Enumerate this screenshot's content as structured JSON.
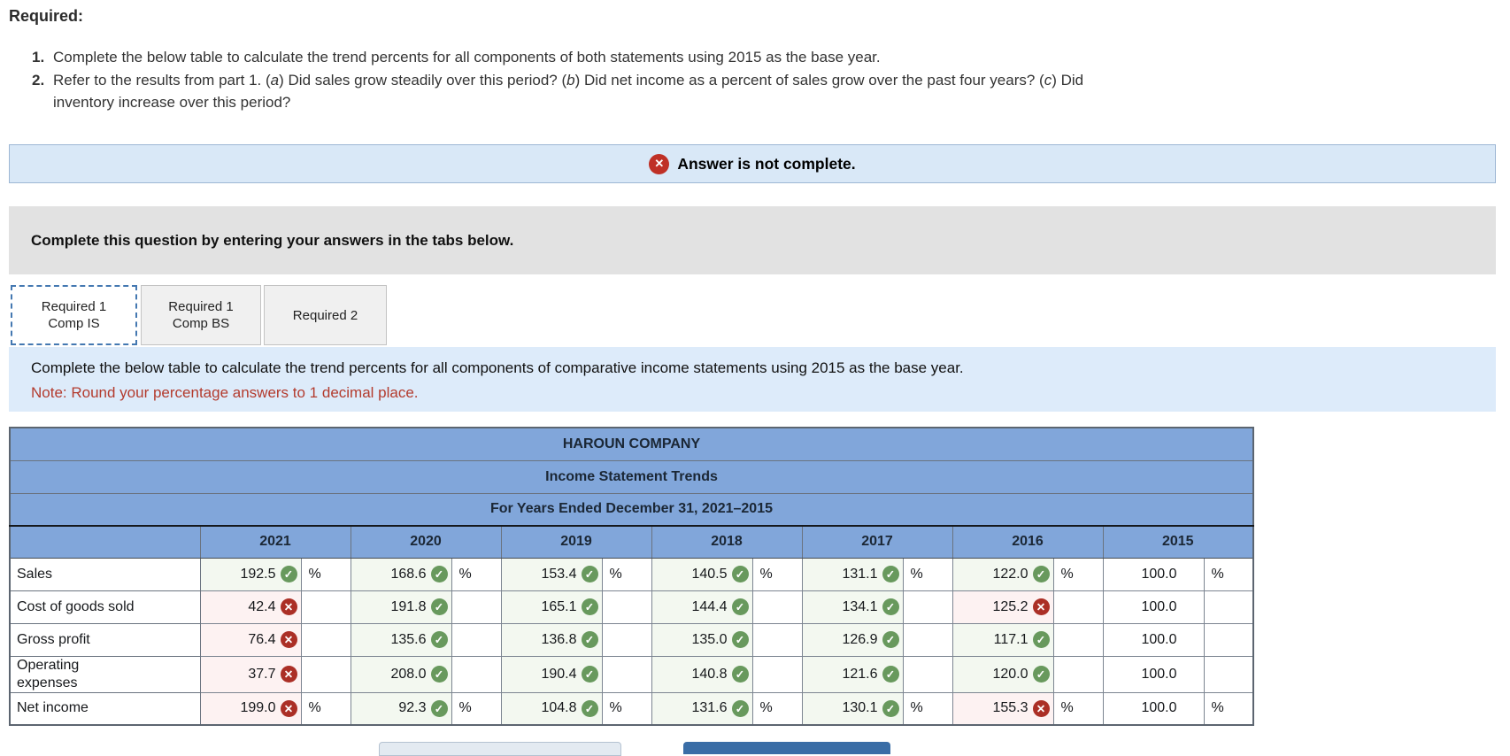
{
  "instructions": {
    "required_label": "Required:",
    "item1_num": "1.",
    "item1_text": "Complete the below table to calculate the trend percents for all components of both statements using 2015 as the base year.",
    "item2_num": "2.",
    "item2_segments": [
      {
        "text": "Refer to the results from part 1. ("
      },
      {
        "text": "a",
        "italic": true
      },
      {
        "text": ") Did sales grow steadily over this period? ("
      },
      {
        "text": "b",
        "italic": true
      },
      {
        "text": ") Did net income as a percent of sales grow over the past four years? ("
      },
      {
        "text": "c",
        "italic": true
      },
      {
        "text": ") Did inventory increase over this period?"
      }
    ]
  },
  "status_banner": {
    "icon": "x-circle-icon",
    "text": "Answer is not complete."
  },
  "prompt_bar": {
    "text": "Complete this question by entering your answers in the tabs below."
  },
  "tabs": [
    {
      "lines": [
        "Required 1",
        "Comp IS"
      ],
      "active": true
    },
    {
      "lines": [
        "Required 1",
        "Comp BS"
      ],
      "active": false
    },
    {
      "lines": [
        "Required 2"
      ],
      "active": false
    }
  ],
  "tab_panel": {
    "instruction": "Complete the below table to calculate the trend percents for all components of comparative income statements using 2015 as the base year.",
    "note": "Note: Round your percentage answers to 1 decimal place."
  },
  "table": {
    "titles": [
      "HAROUN COMPANY",
      "Income Statement Trends",
      "For Years Ended December 31, 2021–2015"
    ],
    "years": [
      "2021",
      "2020",
      "2019",
      "2018",
      "2017",
      "2016",
      "2015"
    ],
    "unit": "%",
    "rows": [
      {
        "label": "Sales",
        "show_unit": true,
        "cells": [
          {
            "value": "192.5",
            "status": "correct"
          },
          {
            "value": "168.6",
            "status": "correct"
          },
          {
            "value": "153.4",
            "status": "correct"
          },
          {
            "value": "140.5",
            "status": "correct"
          },
          {
            "value": "131.1",
            "status": "correct"
          },
          {
            "value": "122.0",
            "status": "correct"
          },
          {
            "value": "100.0",
            "status": "given"
          }
        ]
      },
      {
        "label": "Cost of goods sold",
        "show_unit": false,
        "cells": [
          {
            "value": "42.4",
            "status": "incorrect"
          },
          {
            "value": "191.8",
            "status": "correct"
          },
          {
            "value": "165.1",
            "status": "correct"
          },
          {
            "value": "144.4",
            "status": "correct"
          },
          {
            "value": "134.1",
            "status": "correct"
          },
          {
            "value": "125.2",
            "status": "incorrect"
          },
          {
            "value": "100.0",
            "status": "given"
          }
        ]
      },
      {
        "label": "Gross profit",
        "show_unit": false,
        "cells": [
          {
            "value": "76.4",
            "status": "incorrect"
          },
          {
            "value": "135.6",
            "status": "correct"
          },
          {
            "value": "136.8",
            "status": "correct"
          },
          {
            "value": "135.0",
            "status": "correct"
          },
          {
            "value": "126.9",
            "status": "correct"
          },
          {
            "value": "117.1",
            "status": "correct"
          },
          {
            "value": "100.0",
            "status": "given"
          }
        ]
      },
      {
        "label": "Operating\nexpenses",
        "show_unit": false,
        "cells": [
          {
            "value": "37.7",
            "status": "incorrect"
          },
          {
            "value": "208.0",
            "status": "correct"
          },
          {
            "value": "190.4",
            "status": "correct"
          },
          {
            "value": "140.8",
            "status": "correct"
          },
          {
            "value": "121.6",
            "status": "correct"
          },
          {
            "value": "120.0",
            "status": "correct"
          },
          {
            "value": "100.0",
            "status": "given"
          }
        ]
      },
      {
        "label": "Net income",
        "show_unit": true,
        "cells": [
          {
            "value": "199.0",
            "status": "incorrect"
          },
          {
            "value": "92.3",
            "status": "correct"
          },
          {
            "value": "104.8",
            "status": "correct"
          },
          {
            "value": "131.6",
            "status": "correct"
          },
          {
            "value": "130.1",
            "status": "correct"
          },
          {
            "value": "155.3",
            "status": "incorrect"
          },
          {
            "value": "100.0",
            "status": "given"
          }
        ]
      }
    ]
  },
  "colors": {
    "header_blue": "#81a6da",
    "banner_blue": "#d9e8f7",
    "correct_green": "#68995d",
    "incorrect_red": "#ab2f26",
    "note_red": "#b33b2e"
  }
}
